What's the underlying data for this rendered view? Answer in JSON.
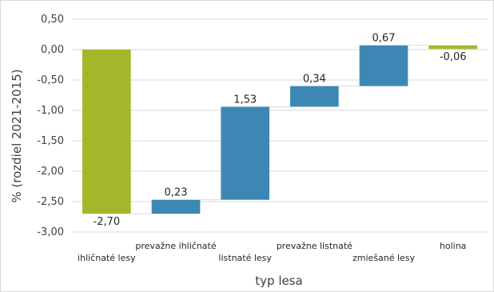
{
  "chart_data": {
    "type": "waterfall",
    "categories": [
      "ihličnaté lesy",
      "prevažne ihličnaté",
      "listnaté lesy",
      "prevažne listnaté",
      "zmiešané lesy",
      "holina"
    ],
    "values": [
      -2.7,
      0.23,
      1.53,
      0.34,
      0.67,
      -0.06
    ],
    "value_labels": [
      "-2,70",
      "0,23",
      "1,53",
      "0,34",
      "0,67",
      "-0,06"
    ],
    "total_indices": [
      0
    ],
    "ylim": [
      -3.0,
      0.5
    ],
    "yticks": [
      0.5,
      0.0,
      -0.5,
      -1.0,
      -1.5,
      -2.0,
      -2.5,
      -3.0
    ],
    "ytick_labels": [
      "0,50",
      "0,00",
      "-0,50",
      "-1,00",
      "-1,50",
      "-2,00",
      "-2,50",
      "-3,00"
    ],
    "xlabel": "typ lesa",
    "ylabel": "% (rozdiel 2021-2015)",
    "grid": true,
    "legend": "none",
    "colors": {
      "total": "#a5b62b",
      "increase": "#3d87b5",
      "decrease": "#a5b62b",
      "grid": "#d9d9d9",
      "connector": "#d9d9d9"
    }
  }
}
